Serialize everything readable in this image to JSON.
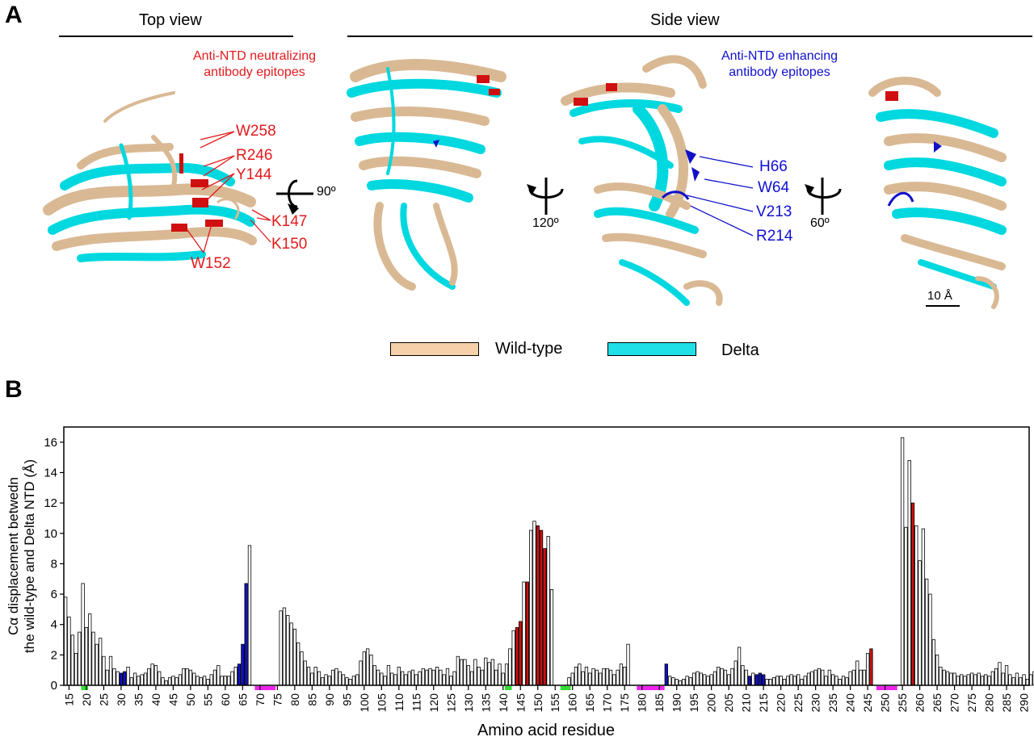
{
  "panel_a": {
    "letter": "A",
    "top_view_title": "Top view",
    "side_view_title": "Side view",
    "neutralizing_label_line1": "Anti-NTD neutralizing",
    "neutralizing_label_line2": "antibody epitopes",
    "enhancing_label_line1": "Anti-NTD enhancing",
    "enhancing_label_line2": "antibody epitopes",
    "neutralizing_residues": [
      "W258",
      "R246",
      "Y144",
      "K147",
      "K150",
      "W152"
    ],
    "enhancing_residues": [
      "H66",
      "W64",
      "V213",
      "R214"
    ],
    "rotations": [
      "90º",
      "120º",
      "60º"
    ],
    "scale_bar": "10 Å",
    "legend": [
      {
        "label": "Wild-type",
        "color": "#f5d0a8"
      },
      {
        "label": "Delta",
        "color": "#1fe0e6"
      }
    ]
  },
  "panel_b": {
    "letter": "B"
  },
  "colors": {
    "neutralizing": "#d01010",
    "enhancing": "#1010c8",
    "wildtype": "#d9b994",
    "delta": "#00d8e0",
    "green_region": "#33dd33",
    "magenta_region": "#ee22ee"
  },
  "chart_data": {
    "type": "bar",
    "xlabel": "Amino acid residue",
    "ylabel_line1": "Cα displacement betwedn",
    "ylabel_line2": "the wild-type and Delta NTD (Å)",
    "xlim": [
      14,
      291
    ],
    "ylim": [
      0,
      17
    ],
    "yticks": [
      0,
      2,
      4,
      6,
      8,
      10,
      12,
      14,
      16
    ],
    "xticks": [
      15,
      20,
      25,
      30,
      35,
      40,
      45,
      50,
      55,
      60,
      65,
      70,
      75,
      80,
      85,
      90,
      95,
      100,
      105,
      110,
      115,
      120,
      125,
      130,
      135,
      140,
      145,
      150,
      155,
      160,
      165,
      170,
      175,
      180,
      185,
      190,
      195,
      200,
      205,
      210,
      215,
      220,
      225,
      230,
      235,
      240,
      245,
      250,
      255,
      260,
      265,
      270,
      275,
      280,
      285,
      290
    ],
    "start_residue": 14,
    "values": [
      5.8,
      4.5,
      3.3,
      2.1,
      3.5,
      6.7,
      3.8,
      4.7,
      3.5,
      2.7,
      3.1,
      1.9,
      1.0,
      1.9,
      1.1,
      0.9,
      0.8,
      0.9,
      1.2,
      0.5,
      0.8,
      0.6,
      0.7,
      0.8,
      1.1,
      1.4,
      1.3,
      0.9,
      0.5,
      0.3,
      0.5,
      0.6,
      0.5,
      0.7,
      1.1,
      1.1,
      1.0,
      0.8,
      0.6,
      0.5,
      0.6,
      0.4,
      0.7,
      1.0,
      1.3,
      0.6,
      0.6,
      0.6,
      0.9,
      1.2,
      1.4,
      2.7,
      6.7,
      9.2,
      0,
      0,
      0,
      0,
      0,
      0,
      0,
      0,
      4.9,
      5.1,
      4.6,
      4.1,
      3.7,
      2.8,
      2.2,
      1.6,
      1.2,
      0.8,
      1.2,
      0.9,
      0.5,
      0.7,
      0.6,
      1.0,
      1.1,
      0.9,
      0.7,
      0.5,
      0.4,
      0.6,
      0.7,
      1.6,
      2.2,
      2.4,
      2.0,
      1.3,
      1.0,
      0.8,
      0.6,
      1.3,
      0.8,
      0.7,
      1.2,
      0.9,
      0.7,
      0.9,
      1.0,
      0.7,
      0.9,
      1.1,
      1.0,
      1.1,
      1.0,
      1.2,
      1.0,
      0.7,
      1.1,
      0.6,
      0.9,
      1.9,
      1.7,
      1.7,
      1.3,
      0.9,
      1.7,
      1.2,
      1.0,
      1.8,
      1.5,
      1.7,
      1.0,
      1.4,
      0.8,
      1.4,
      2.4,
      3.6,
      3.8,
      4.2,
      6.8,
      6.8,
      10.2,
      10.8,
      10.5,
      10.2,
      9.0,
      9.8,
      6.3,
      0,
      0,
      0,
      0,
      0.5,
      0.8,
      1.2,
      1.4,
      0.9,
      1.2,
      0.8,
      1.1,
      1.0,
      0.8,
      1.1,
      1.1,
      1.0,
      0.7,
      1.0,
      1.4,
      1.2,
      2.7,
      0,
      0,
      0,
      0,
      0,
      0,
      0,
      0,
      0,
      0,
      1.4,
      0.6,
      0.5,
      0.4,
      0.3,
      0.4,
      0.6,
      0.5,
      0.8,
      0.9,
      0.8,
      0.7,
      0.6,
      0.7,
      0.9,
      1.2,
      1.1,
      1.0,
      0.7,
      1.1,
      1.6,
      2.5,
      1.3,
      1.0,
      0.6,
      0.8,
      0.7,
      0.8,
      0.7,
      0.4,
      0.4,
      0.5,
      0.6,
      0.6,
      0.4,
      0.6,
      0.7,
      0.6,
      0.7,
      0.4,
      0.6,
      0.8,
      0.9,
      1.0,
      1.1,
      1.0,
      0.6,
      1.0,
      0.7,
      0.6,
      0.4,
      0.6,
      0.5,
      0.9,
      1.0,
      1.6,
      1.0,
      1.0,
      2.1,
      2.4,
      0,
      0,
      0,
      0,
      0,
      0,
      0,
      0,
      16.3,
      10.4,
      14.8,
      12.0,
      10.5,
      8.2,
      10.3,
      7.0,
      6.0,
      3.0,
      2.0,
      1.2,
      1.0,
      0.9,
      0.8,
      0.8,
      0.6,
      0.7,
      0.6,
      0.7,
      0.8,
      0.7,
      0.8,
      0.6,
      0.7,
      0.6,
      0.9,
      1.1,
      1.5,
      0.8,
      1.3,
      0.7,
      0.5,
      0.8,
      0.5,
      0.7,
      0.4,
      0.7,
      0.9,
      1.1,
      0.9,
      1.9
    ],
    "red_residues": [
      144,
      145,
      147,
      150,
      151,
      152,
      246,
      258
    ],
    "blue_residues": [
      30,
      31,
      64,
      65,
      66,
      187,
      211,
      213,
      214,
      215
    ],
    "green_regions": [
      [
        19,
        20
      ],
      [
        141,
        142
      ],
      [
        157,
        159
      ]
    ],
    "magenta_regions": [
      [
        69,
        74
      ],
      [
        179,
        186
      ],
      [
        248,
        253
      ]
    ]
  }
}
